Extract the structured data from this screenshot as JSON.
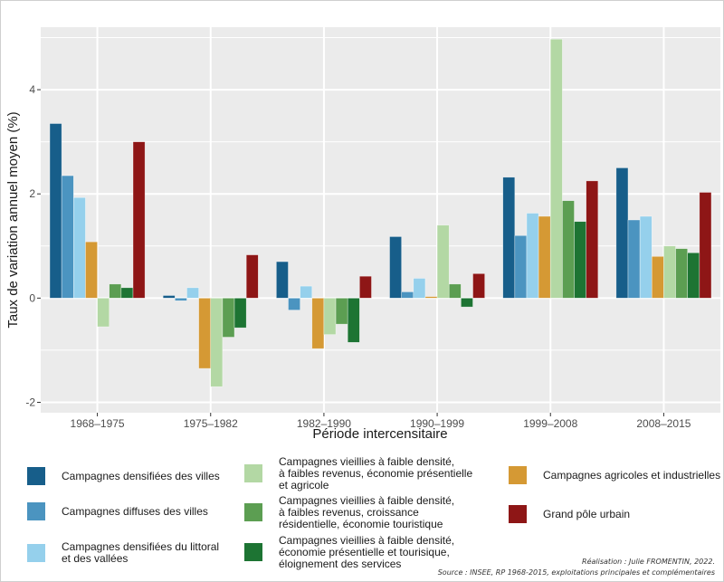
{
  "chart_data": {
    "type": "bar",
    "title": "",
    "xlabel": "Période intercensitaire",
    "ylabel": "Taux de variation annuel moyen (%)",
    "ylim": [
      -2.2,
      5.2
    ],
    "yticks": [
      -2,
      0,
      2,
      4
    ],
    "grid": true,
    "legend_position": "bottom",
    "categories": [
      "1968-1975",
      "1975-1982",
      "1982-1990",
      "1990-1999",
      "1999-2008",
      "2008-2015"
    ],
    "series": [
      {
        "name": "Campagnes densifiées des villes",
        "color": "#175e8a",
        "values": [
          3.35,
          0.05,
          0.7,
          1.18,
          2.32,
          2.5
        ]
      },
      {
        "name": "Campagnes diffuses des villes",
        "color": "#4b94c0",
        "values": [
          2.35,
          -0.05,
          -0.23,
          0.12,
          1.2,
          1.5
        ]
      },
      {
        "name": "Campagnes densifiées du littoral\net des vallées",
        "color": "#95d0ec",
        "values": [
          1.93,
          0.2,
          0.23,
          0.38,
          1.63,
          1.57
        ]
      },
      {
        "name": "Campagnes agricoles et industrielles",
        "color": "#d59934",
        "values": [
          1.08,
          -1.35,
          -0.97,
          0.03,
          1.57,
          0.8
        ]
      },
      {
        "name": "Campagnes vieillies à faible densité,\nà faibles revenus, économie présentielle\net agricole",
        "color": "#b3d8a4",
        "values": [
          -0.55,
          -1.7,
          -0.7,
          1.4,
          4.97,
          1.0
        ]
      },
      {
        "name": "Campagnes vieillies à faible densité,\nà faibles revenus, croissance\nrésidentielle, économie touristique",
        "color": "#5c9e52",
        "values": [
          0.27,
          -0.75,
          -0.5,
          0.27,
          1.87,
          0.95
        ]
      },
      {
        "name": "Campagnes vieillies à faible densité,\néconomie présentielle et tourisique,\néloignement des services",
        "color": "#1d7433",
        "values": [
          0.2,
          -0.57,
          -0.85,
          -0.17,
          1.47,
          0.87
        ]
      },
      {
        "name": "Grand pôle urbain",
        "color": "#8e1616",
        "values": [
          3.0,
          0.83,
          0.42,
          0.47,
          2.25,
          2.03
        ]
      }
    ],
    "tick_labels": {
      "x": [
        "1968–1975",
        "1975–1982",
        "1982–1990",
        "1990–1999",
        "1999–2008",
        "2008–2015"
      ],
      "y": [
        "-2",
        "0",
        "2",
        "4"
      ]
    }
  },
  "legend": {
    "items": [
      {
        "label": "Campagnes densifiées des villes",
        "color": "#175e8a"
      },
      {
        "label": "Campagnes diffuses des villes",
        "color": "#4b94c0"
      },
      {
        "label": "Campagnes densifiées du littoral\net des vallées",
        "color": "#95d0ec"
      },
      {
        "label": "Campagnes vieillies à faible densité,\nà faibles revenus, économie présentielle\net agricole",
        "color": "#b3d8a4"
      },
      {
        "label": "Campagnes vieillies à faible densité,\nà faibles revenus, croissance\nrésidentielle, économie touristique",
        "color": "#5c9e52"
      },
      {
        "label": "Campagnes vieillies à faible densité,\néconomie présentielle et tourisique,\néloignement des services",
        "color": "#1d7433"
      },
      {
        "label": "Campagnes agricoles et industrielles",
        "color": "#d59934"
      },
      {
        "label": "Grand pôle urbain",
        "color": "#8e1616"
      }
    ]
  },
  "credits": {
    "realisation": "Réalisation : Julie FROMENTIN, 2022.",
    "source": "Source : INSEE, RP 1968-2015, exploitations principales et complémentaires"
  },
  "colors": {
    "panel_background": "#ebebeb",
    "grid": "#ffffff"
  }
}
